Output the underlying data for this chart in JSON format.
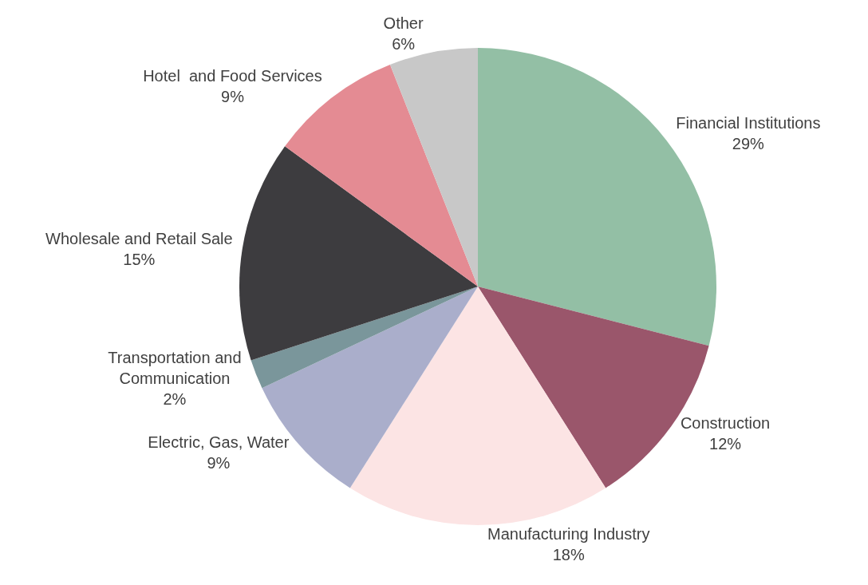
{
  "chart_data": {
    "type": "pie",
    "categories": [
      "Financial Institutions",
      "Construction",
      "Manufacturing Industry",
      "Electric, Gas, Water",
      "Transportation and Communication",
      "Wholesale and Retail Sale",
      "Hotel  and Food Services",
      "Other"
    ],
    "values": [
      29,
      12,
      18,
      9,
      2,
      15,
      9,
      6
    ],
    "value_labels": [
      "29%",
      "12%",
      "18%",
      "9%",
      "2%",
      "15%",
      "9%",
      "6%"
    ],
    "colors": [
      "#93bfa5",
      "#9a566b",
      "#fce4e4",
      "#aaaecb",
      "#7a969b",
      "#3d3c3f",
      "#e48b93",
      "#c8c8c8"
    ],
    "legend": false
  }
}
